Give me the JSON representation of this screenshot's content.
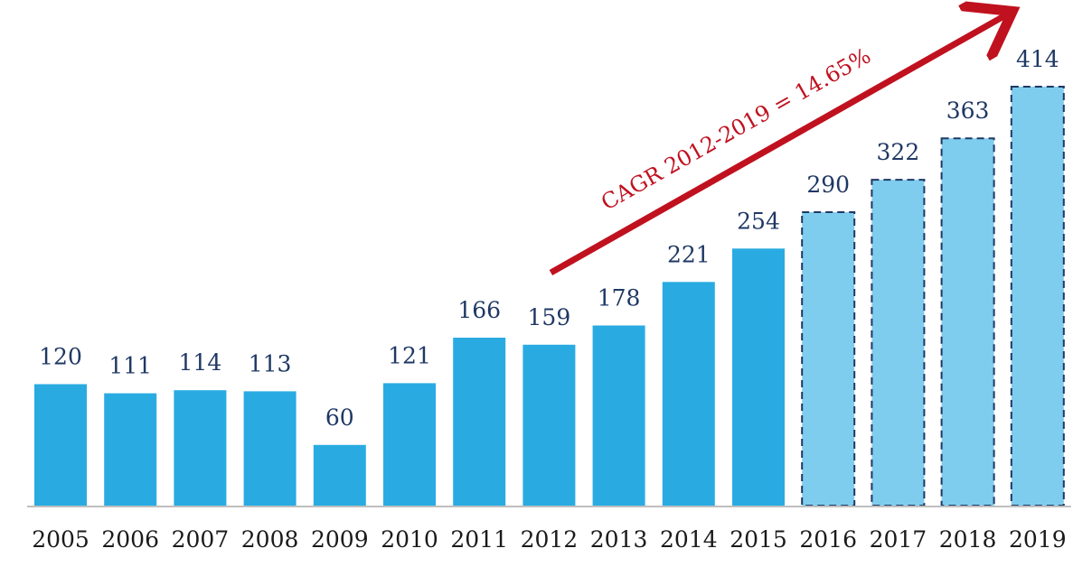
{
  "chart_data": {
    "type": "bar",
    "categories": [
      "2005",
      "2006",
      "2007",
      "2008",
      "2009",
      "2010",
      "2011",
      "2012",
      "2013",
      "2014",
      "2015",
      "2016",
      "2017",
      "2018",
      "2019"
    ],
    "values": [
      120,
      111,
      114,
      113,
      60,
      121,
      166,
      159,
      178,
      221,
      254,
      290,
      322,
      363,
      414
    ],
    "forecast": [
      false,
      false,
      false,
      false,
      false,
      false,
      false,
      false,
      false,
      false,
      false,
      true,
      true,
      true,
      true
    ],
    "data_labels": [
      "120",
      "111",
      "114",
      "113",
      "60",
      "121",
      "166",
      "159",
      "178",
      "221",
      "254",
      "290",
      "322",
      "363",
      "414"
    ],
    "annotation": {
      "text": "CAGR 2012-2019 = 14.65%",
      "from_category": "2012",
      "to_category": "2019"
    },
    "title": "",
    "xlabel": "",
    "ylabel": "",
    "ylim": [
      0,
      414
    ],
    "grid": false,
    "legend": "none",
    "colors": {
      "actual": "#29abe2",
      "forecast": "#7fcdee",
      "forecast_border": "#1f3864",
      "arrow": "#c0111f",
      "label": "#1f3864",
      "axis": "#bfbfbf"
    }
  }
}
